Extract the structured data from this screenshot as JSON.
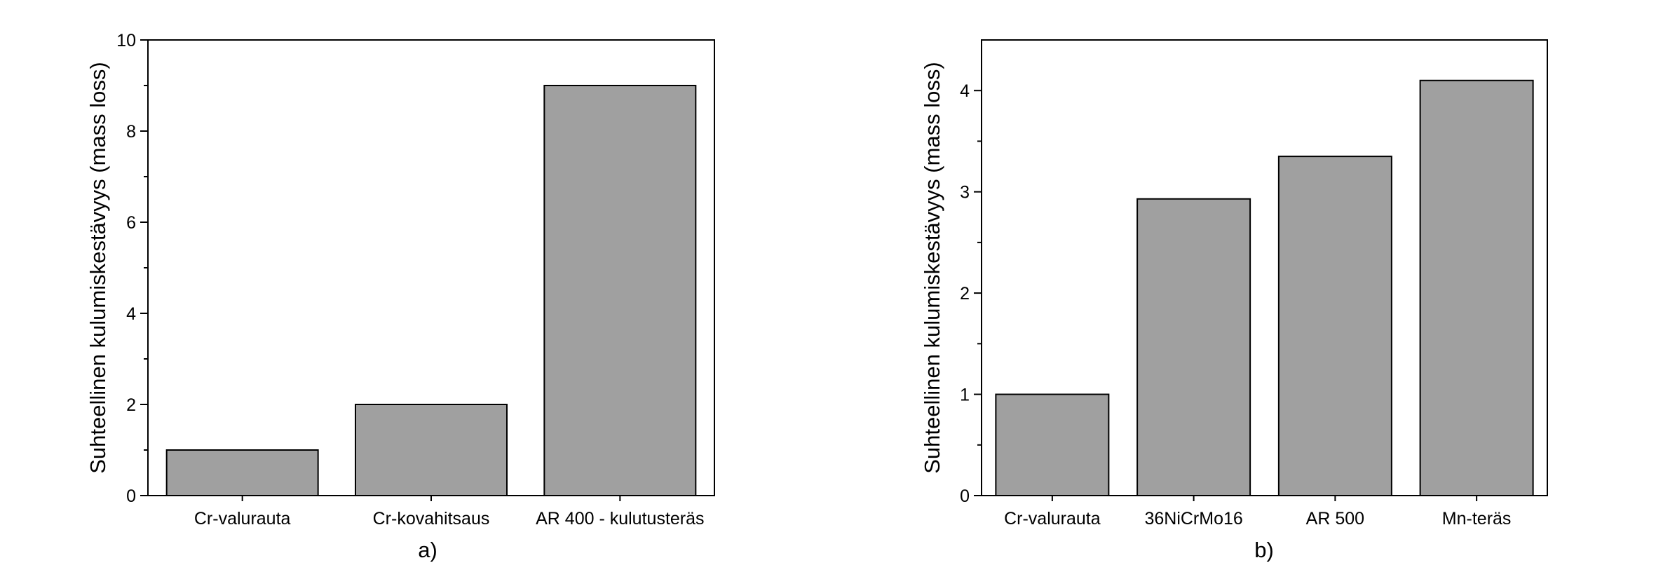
{
  "colors": {
    "bar_fill": "#a0a0a0",
    "bar_stroke": "#000000",
    "axis": "#000000"
  },
  "chart_data": [
    {
      "type": "bar",
      "panel_label": "a)",
      "ylabel": "Suhteellinen kulumiskestävyys (mass loss)",
      "xlabel": "",
      "categories": [
        "Cr-valurauta",
        "Cr-kovahitsaus",
        "AR 400 - kulutusteräs"
      ],
      "values": [
        1,
        2,
        9
      ],
      "ylim": [
        0,
        10
      ],
      "yticks": [
        0,
        2,
        4,
        6,
        8,
        10
      ],
      "yminor": [
        1,
        3,
        5,
        7,
        9
      ],
      "grid": false,
      "legend": "none"
    },
    {
      "type": "bar",
      "panel_label": "b)",
      "ylabel": "Suhteellinen kulumiskestävyys (mass loss)",
      "xlabel": "",
      "categories": [
        "Cr-valurauta",
        "36NiCrMo16",
        "AR 500",
        "Mn-teräs"
      ],
      "values": [
        1,
        2.93,
        3.35,
        4.1
      ],
      "ylim": [
        0,
        4.5
      ],
      "yticks": [
        0,
        1,
        2,
        3,
        4
      ],
      "yminor": [
        0.5,
        1.5,
        2.5,
        3.5
      ],
      "grid": false,
      "legend": "none"
    }
  ]
}
